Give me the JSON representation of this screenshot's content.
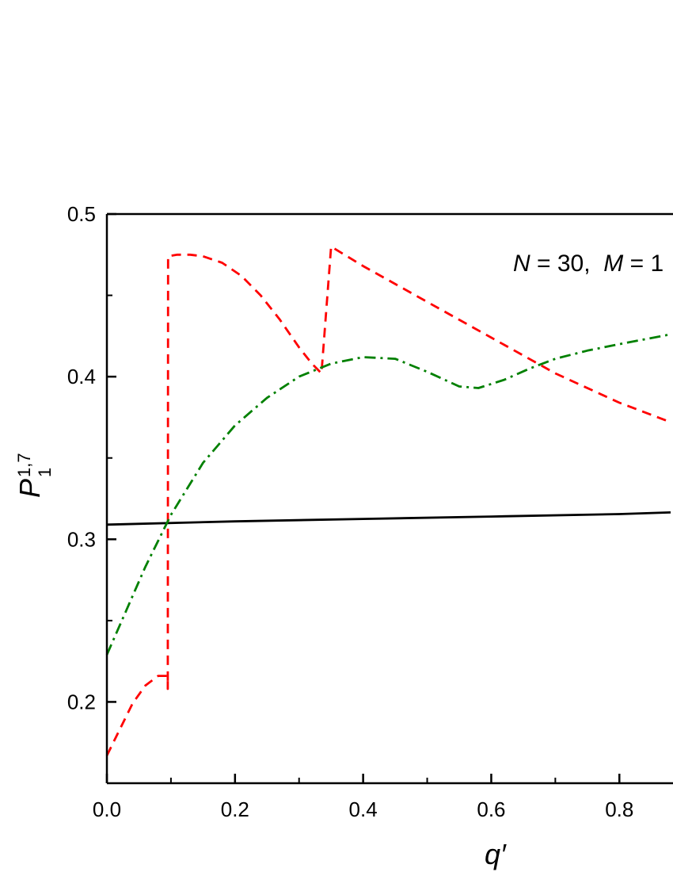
{
  "chart_data": {
    "type": "line",
    "xlabel": "q′",
    "ylabel": {
      "base": "P",
      "superscript": "1,7",
      "subscript": "1"
    },
    "annotation": {
      "N_sym": "N",
      "N_text": " = 30,  ",
      "M_sym": "M",
      "M_text": " = 1"
    },
    "xlim": [
      0.0,
      0.88
    ],
    "ylim": [
      0.15,
      0.5
    ],
    "x_ticks": [
      "0.0",
      "0.2",
      "0.4",
      "0.6",
      "0.8"
    ],
    "x_tick_values": [
      0.0,
      0.2,
      0.4,
      0.6,
      0.8
    ],
    "y_ticks": [
      "0.2",
      "0.3",
      "0.4",
      "0.5"
    ],
    "y_tick_values": [
      0.2,
      0.3,
      0.4,
      0.5
    ],
    "grid": false,
    "series": [
      {
        "style": "solid",
        "color": "#000000",
        "x": [
          0.0,
          0.2,
          0.4,
          0.6,
          0.8,
          0.88
        ],
        "y": [
          0.309,
          0.311,
          0.3125,
          0.314,
          0.3155,
          0.3165
        ]
      },
      {
        "style": "dashed",
        "color": "#ff0000",
        "x": [
          0.0,
          0.02,
          0.04,
          0.06,
          0.08,
          0.095,
          0.095,
          0.0955,
          0.11,
          0.13,
          0.15,
          0.18,
          0.21,
          0.24,
          0.27,
          0.3,
          0.32,
          0.335,
          0.335,
          0.35,
          0.4,
          0.5,
          0.6,
          0.7,
          0.8,
          0.88
        ],
        "y": [
          0.167,
          0.183,
          0.199,
          0.21,
          0.216,
          0.216,
          0.208,
          0.474,
          0.475,
          0.475,
          0.474,
          0.47,
          0.462,
          0.45,
          0.435,
          0.418,
          0.408,
          0.402,
          0.402,
          0.48,
          0.468,
          0.446,
          0.424,
          0.402,
          0.384,
          0.372
        ]
      },
      {
        "style": "dashdot",
        "color": "#008000",
        "x": [
          0.0,
          0.03,
          0.06,
          0.1,
          0.15,
          0.2,
          0.25,
          0.3,
          0.35,
          0.4,
          0.45,
          0.5,
          0.55,
          0.58,
          0.62,
          0.66,
          0.7,
          0.75,
          0.8,
          0.88
        ],
        "y": [
          0.229,
          0.256,
          0.283,
          0.315,
          0.347,
          0.37,
          0.387,
          0.4,
          0.408,
          0.412,
          0.411,
          0.403,
          0.394,
          0.393,
          0.398,
          0.405,
          0.411,
          0.416,
          0.42,
          0.426
        ]
      }
    ]
  }
}
